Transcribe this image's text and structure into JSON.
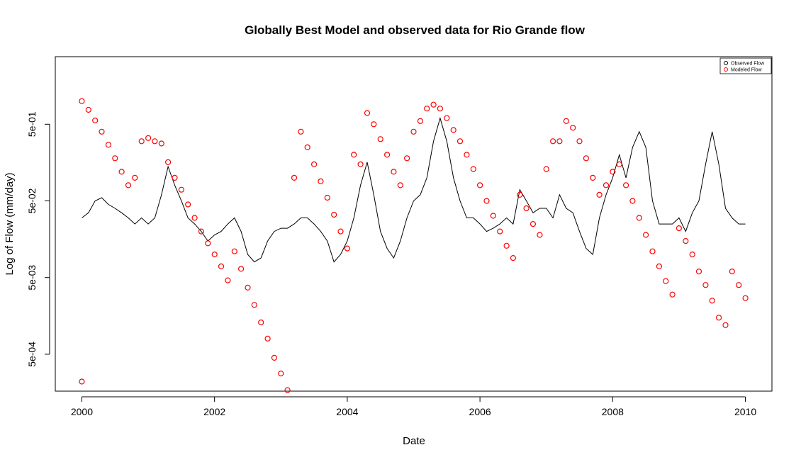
{
  "chart_data": {
    "type": "line",
    "title": "Globally Best Model and observed data for Rio Grande flow",
    "xlabel": "Date",
    "ylabel": "Log of Flow (mm/day)",
    "x_range": [
      2000,
      2010
    ],
    "y_range": [
      0.000165,
      3.8
    ],
    "y_scale": "log",
    "grid": false,
    "legend_position": "top-right",
    "x_ticks": [
      {
        "value": 2000,
        "label": "2000"
      },
      {
        "value": 2002,
        "label": "2002"
      },
      {
        "value": 2004,
        "label": "2004"
      },
      {
        "value": 2006,
        "label": "2006"
      },
      {
        "value": 2008,
        "label": "2008"
      },
      {
        "value": 2010,
        "label": "2010"
      }
    ],
    "y_ticks": [
      {
        "value": 0.0005,
        "label": "5e-04"
      },
      {
        "value": 0.005,
        "label": "5e-03"
      },
      {
        "value": 0.05,
        "label": "5e-02"
      },
      {
        "value": 0.5,
        "label": "5e-01"
      }
    ],
    "series": [
      {
        "name": "Observed Flow",
        "style": "line",
        "color": "#000000",
        "x": [
          2000.0,
          2000.1,
          2000.2,
          2000.3,
          2000.4,
          2000.5,
          2000.6,
          2000.7,
          2000.8,
          2000.9,
          2001.0,
          2001.1,
          2001.2,
          2001.3,
          2001.4,
          2001.5,
          2001.6,
          2001.7,
          2001.8,
          2001.9,
          2002.0,
          2002.1,
          2002.2,
          2002.3,
          2002.4,
          2002.5,
          2002.6,
          2002.7,
          2002.8,
          2002.9,
          2003.0,
          2003.1,
          2003.2,
          2003.3,
          2003.4,
          2003.5,
          2003.6,
          2003.7,
          2003.8,
          2003.9,
          2004.0,
          2004.1,
          2004.2,
          2004.3,
          2004.4,
          2004.5,
          2004.6,
          2004.7,
          2004.8,
          2004.9,
          2005.0,
          2005.1,
          2005.2,
          2005.3,
          2005.4,
          2005.5,
          2005.6,
          2005.7,
          2005.8,
          2005.9,
          2006.0,
          2006.1,
          2006.2,
          2006.3,
          2006.4,
          2006.5,
          2006.6,
          2006.7,
          2006.8,
          2006.9,
          2007.0,
          2007.1,
          2007.2,
          2007.3,
          2007.4,
          2007.5,
          2007.6,
          2007.7,
          2007.8,
          2007.9,
          2008.0,
          2008.1,
          2008.2,
          2008.3,
          2008.4,
          2008.5,
          2008.6,
          2008.7,
          2008.8,
          2008.9,
          2009.0,
          2009.1,
          2009.2,
          2009.3,
          2009.4,
          2009.5,
          2009.6,
          2009.7,
          2009.8,
          2009.9,
          2010.0
        ],
        "y": [
          0.03,
          0.035,
          0.05,
          0.055,
          0.045,
          0.04,
          0.035,
          0.03,
          0.025,
          0.03,
          0.025,
          0.03,
          0.06,
          0.14,
          0.08,
          0.05,
          0.03,
          0.025,
          0.02,
          0.015,
          0.018,
          0.02,
          0.025,
          0.03,
          0.02,
          0.01,
          0.008,
          0.009,
          0.015,
          0.02,
          0.022,
          0.022,
          0.025,
          0.03,
          0.03,
          0.025,
          0.02,
          0.015,
          0.008,
          0.01,
          0.015,
          0.03,
          0.08,
          0.16,
          0.06,
          0.02,
          0.012,
          0.009,
          0.015,
          0.03,
          0.05,
          0.06,
          0.1,
          0.3,
          0.6,
          0.3,
          0.1,
          0.05,
          0.03,
          0.03,
          0.025,
          0.02,
          0.022,
          0.025,
          0.03,
          0.025,
          0.07,
          0.05,
          0.035,
          0.04,
          0.04,
          0.03,
          0.06,
          0.04,
          0.035,
          0.02,
          0.012,
          0.01,
          0.03,
          0.06,
          0.1,
          0.2,
          0.1,
          0.25,
          0.4,
          0.25,
          0.05,
          0.025,
          0.025,
          0.025,
          0.03,
          0.02,
          0.035,
          0.05,
          0.15,
          0.4,
          0.15,
          0.04,
          0.03,
          0.025,
          0.025
        ]
      },
      {
        "name": "Modeled Flow",
        "style": "points",
        "color": "#ff0000",
        "x": [
          2000.0,
          2000.1,
          2000.2,
          2000.3,
          2000.4,
          2000.5,
          2000.6,
          2000.7,
          2000.8,
          2000.9,
          2001.0,
          2001.1,
          2001.2,
          2001.3,
          2001.4,
          2001.5,
          2001.6,
          2001.7,
          2001.8,
          2001.9,
          2002.0,
          2002.1,
          2002.2,
          2002.3,
          2002.4,
          2002.5,
          2002.6,
          2002.7,
          2002.8,
          2002.9,
          2003.0,
          2003.1,
          2003.2,
          2003.3,
          2003.4,
          2003.5,
          2003.6,
          2003.7,
          2003.8,
          2003.9,
          2004.0,
          2004.1,
          2004.2,
          2004.3,
          2004.4,
          2004.5,
          2004.6,
          2004.7,
          2004.8,
          2004.9,
          2005.0,
          2005.1,
          2005.2,
          2005.3,
          2005.4,
          2005.5,
          2005.6,
          2005.7,
          2005.8,
          2005.9,
          2006.0,
          2006.1,
          2006.2,
          2006.3,
          2006.4,
          2006.5,
          2006.6,
          2006.7,
          2006.8,
          2006.9,
          2007.0,
          2007.1,
          2007.2,
          2007.3,
          2007.4,
          2007.5,
          2007.6,
          2007.7,
          2007.8,
          2007.9,
          2008.0,
          2008.1,
          2008.2,
          2008.3,
          2008.4,
          2008.5,
          2008.6,
          2008.7,
          2008.8,
          2008.9,
          2009.0,
          2009.1,
          2009.2,
          2009.3,
          2009.4,
          2009.5,
          2009.6,
          2009.7,
          2009.8,
          2009.9,
          2010.0,
          2000.0
        ],
        "y": [
          1.0,
          0.77,
          0.56,
          0.4,
          0.27,
          0.18,
          0.12,
          0.08,
          0.1,
          0.3,
          0.33,
          0.3,
          0.28,
          0.16,
          0.1,
          0.07,
          0.045,
          0.03,
          0.02,
          0.014,
          0.01,
          0.007,
          0.0046,
          0.011,
          0.0065,
          0.0037,
          0.0022,
          0.0013,
          0.0008,
          0.00045,
          0.00028,
          0.00017,
          0.1,
          0.4,
          0.25,
          0.15,
          0.09,
          0.055,
          0.033,
          0.02,
          0.012,
          0.2,
          0.15,
          0.7,
          0.5,
          0.32,
          0.2,
          0.12,
          0.08,
          0.18,
          0.4,
          0.55,
          0.8,
          0.9,
          0.8,
          0.6,
          0.42,
          0.3,
          0.2,
          0.13,
          0.08,
          0.05,
          0.032,
          0.02,
          0.013,
          0.009,
          0.06,
          0.04,
          0.025,
          0.018,
          0.13,
          0.3,
          0.3,
          0.55,
          0.45,
          0.3,
          0.18,
          0.1,
          0.06,
          0.08,
          0.12,
          0.15,
          0.08,
          0.05,
          0.03,
          0.018,
          0.011,
          0.007,
          0.0045,
          0.003,
          0.022,
          0.015,
          0.01,
          0.006,
          0.004,
          0.0025,
          0.0015,
          0.0012,
          0.006,
          0.004,
          0.0027,
          0.00022
        ]
      }
    ]
  }
}
